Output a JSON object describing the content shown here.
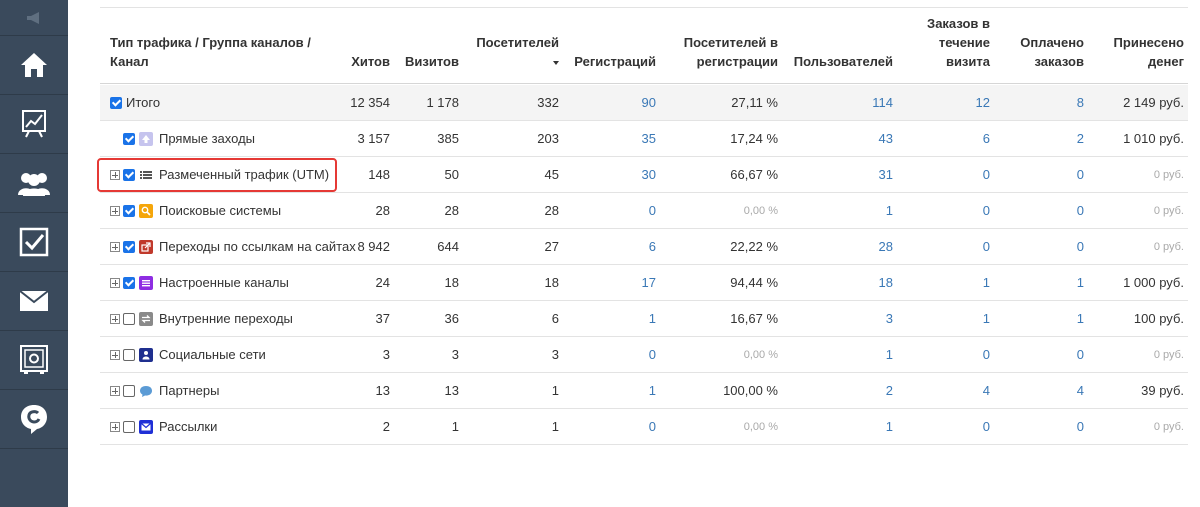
{
  "table": {
    "headers": {
      "channel": [
        "Тип трафика / Группа каналов /",
        "Канал"
      ],
      "hits": [
        "Хитов"
      ],
      "visits": [
        "Визитов"
      ],
      "visitors": [
        "Посетителей"
      ],
      "registrations": [
        "Регистраций"
      ],
      "visitors_reg": [
        "Посетителей в",
        "регистрации"
      ],
      "users": [
        "Пользователей"
      ],
      "orders_visit": [
        "Заказов в",
        "течение",
        "визита"
      ],
      "paid": [
        "Оплачено",
        "заказов"
      ],
      "money": [
        "Принесено",
        "денег"
      ]
    },
    "rows": [
      {
        "name": "Итого",
        "hits": "12 354",
        "visits": "1 178",
        "visitors": "332",
        "registrations": "90",
        "visitors_reg": "27,11 %",
        "users": "114",
        "orders_visit": "12",
        "paid": "8",
        "money": "2 149 руб.",
        "checked": true,
        "expander": false,
        "icon": "none"
      },
      {
        "name": "Прямые заходы",
        "hits": "3 157",
        "visits": "385",
        "visitors": "203",
        "registrations": "35",
        "visitors_reg": "17,24 %",
        "users": "43",
        "orders_visit": "6",
        "paid": "2",
        "money": "1 010 руб.",
        "checked": true,
        "expander": false,
        "icon": "arrow-up-icon"
      },
      {
        "name": "Размеченный трафик (UTM)",
        "hits": "148",
        "visits": "50",
        "visitors": "45",
        "registrations": "30",
        "visitors_reg": "66,67 %",
        "users": "31",
        "orders_visit": "0",
        "paid": "0",
        "money": "0 руб.",
        "checked": true,
        "expander": true,
        "icon": "list-icon"
      },
      {
        "name": "Поисковые системы",
        "hits": "28",
        "visits": "28",
        "visitors": "28",
        "registrations": "0",
        "visitors_reg": "0,00 %",
        "users": "1",
        "orders_visit": "0",
        "paid": "0",
        "money": "0 руб.",
        "checked": true,
        "expander": true,
        "icon": "search-icon"
      },
      {
        "name": "Переходы по ссылкам на сайтах",
        "hits": "8 942",
        "visits": "644",
        "visitors": "27",
        "registrations": "6",
        "visitors_reg": "22,22 %",
        "users": "28",
        "orders_visit": "0",
        "paid": "0",
        "money": "0 руб.",
        "checked": true,
        "expander": true,
        "icon": "external-link-icon"
      },
      {
        "name": "Настроенные каналы",
        "hits": "24",
        "visits": "18",
        "visitors": "18",
        "registrations": "17",
        "visitors_reg": "94,44 %",
        "users": "18",
        "orders_visit": "1",
        "paid": "1",
        "money": "1 000 руб.",
        "checked": true,
        "expander": true,
        "icon": "custom-channel-icon"
      },
      {
        "name": "Внутренние переходы",
        "hits": "37",
        "visits": "36",
        "visitors": "6",
        "registrations": "1",
        "visitors_reg": "16,67 %",
        "users": "3",
        "orders_visit": "1",
        "paid": "1",
        "money": "100 руб.",
        "checked": false,
        "expander": true,
        "icon": "swap-arrows-icon"
      },
      {
        "name": "Социальные сети",
        "hits": "3",
        "visits": "3",
        "visitors": "3",
        "registrations": "0",
        "visitors_reg": "0,00 %",
        "users": "1",
        "orders_visit": "0",
        "paid": "0",
        "money": "0 руб.",
        "checked": false,
        "expander": true,
        "icon": "person-icon"
      },
      {
        "name": "Партнеры",
        "hits": "13",
        "visits": "13",
        "visitors": "1",
        "registrations": "1",
        "visitors_reg": "100,00 %",
        "users": "2",
        "orders_visit": "4",
        "paid": "4",
        "money": "39 руб.",
        "checked": false,
        "expander": true,
        "icon": "chat-bubble-icon"
      },
      {
        "name": "Рассылки",
        "hits": "2",
        "visits": "1",
        "visitors": "1",
        "registrations": "0",
        "visitors_reg": "0,00 %",
        "users": "1",
        "orders_visit": "0",
        "paid": "0",
        "money": "0 руб.",
        "checked": false,
        "expander": true,
        "icon": "envelope-icon"
      }
    ]
  },
  "sidebar": {
    "items": [
      "home-icon",
      "analytics-board-icon",
      "users-group-icon",
      "checkbox-icon",
      "mail-icon",
      "safe-icon",
      "support-logo-icon"
    ]
  },
  "colors": {
    "sidebar_bg": "#3a4a5c",
    "link": "#3a78b6",
    "checkbox": "#1a73e8",
    "highlight": "#e53935"
  }
}
